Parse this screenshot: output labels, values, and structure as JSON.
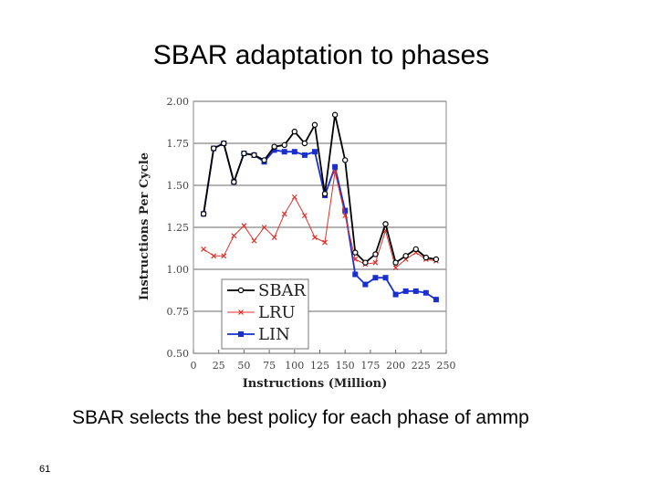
{
  "slide": {
    "title": "SBAR adaptation to phases",
    "caption": "SBAR selects the best policy for each phase of ammp",
    "page_number": "61"
  },
  "chart_data": {
    "type": "line",
    "title": "",
    "xlabel": "Instructions (Million)",
    "ylabel": "Instructions Per Cycle",
    "xlim": [
      0,
      250
    ],
    "ylim": [
      0.5,
      2.0
    ],
    "xticks": [
      0,
      25,
      50,
      75,
      100,
      125,
      150,
      175,
      200,
      225,
      250
    ],
    "xtick_labels": [
      "0",
      "25",
      "50",
      "75",
      "100",
      "125",
      "150",
      "175",
      "200",
      "225",
      "250"
    ],
    "yticks": [
      0.5,
      0.75,
      1.0,
      1.25,
      1.5,
      1.75,
      2.0
    ],
    "ytick_labels": [
      "0.50",
      "0.75",
      "1.00",
      "1.25",
      "1.50",
      "1.75",
      "2.00"
    ],
    "grid": "horizontal",
    "legend_position": "bottom-left",
    "series": [
      {
        "name": "SBAR",
        "color": "#000000",
        "marker": "open-circle",
        "x": [
          10,
          20,
          30,
          40,
          50,
          60,
          70,
          80,
          90,
          100,
          110,
          120,
          130,
          140,
          150,
          160,
          170,
          180,
          190,
          200,
          210,
          220,
          230,
          240
        ],
        "y": [
          1.33,
          1.72,
          1.75,
          1.52,
          1.69,
          1.68,
          1.65,
          1.73,
          1.74,
          1.82,
          1.75,
          1.86,
          1.45,
          1.92,
          1.65,
          1.1,
          1.04,
          1.09,
          1.27,
          1.04,
          1.08,
          1.12,
          1.07,
          1.06
        ]
      },
      {
        "name": "LRU",
        "color": "#e0302a",
        "marker": "x",
        "x": [
          10,
          20,
          30,
          40,
          50,
          60,
          70,
          80,
          90,
          100,
          110,
          120,
          130,
          140,
          150,
          160,
          170,
          180,
          190,
          200,
          210,
          220,
          230,
          240
        ],
        "y": [
          1.12,
          1.08,
          1.08,
          1.2,
          1.26,
          1.17,
          1.25,
          1.19,
          1.33,
          1.43,
          1.32,
          1.19,
          1.16,
          1.58,
          1.32,
          1.06,
          1.03,
          1.04,
          1.23,
          1.01,
          1.06,
          1.1,
          1.06,
          1.05
        ]
      },
      {
        "name": "LIN",
        "color": "#1a2fd0",
        "marker": "filled-square",
        "x": [
          10,
          20,
          30,
          40,
          50,
          60,
          70,
          80,
          90,
          100,
          110,
          120,
          130,
          140,
          150,
          160,
          170,
          180,
          190,
          200,
          210,
          220,
          230,
          240
        ],
        "y": [
          1.33,
          1.72,
          1.75,
          1.52,
          1.69,
          1.68,
          1.64,
          1.71,
          1.7,
          1.7,
          1.68,
          1.7,
          1.44,
          1.61,
          1.35,
          0.97,
          0.91,
          0.95,
          0.95,
          0.85,
          0.87,
          0.87,
          0.86,
          0.82
        ]
      }
    ]
  }
}
